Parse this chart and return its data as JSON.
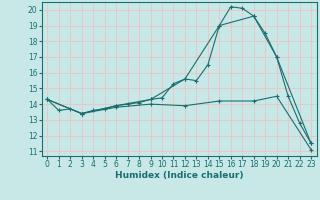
{
  "xlabel": "Humidex (Indice chaleur)",
  "background_color": "#c8e8e8",
  "grid_color": "#e8c8c8",
  "line_color": "#1a6e6e",
  "xlim": [
    -0.5,
    23.5
  ],
  "ylim": [
    10.7,
    20.5
  ],
  "yticks": [
    11,
    12,
    13,
    14,
    15,
    16,
    17,
    18,
    19,
    20
  ],
  "xticks": [
    0,
    1,
    2,
    3,
    4,
    5,
    6,
    7,
    8,
    9,
    10,
    11,
    12,
    13,
    14,
    15,
    16,
    17,
    18,
    19,
    20,
    21,
    22,
    23
  ],
  "curve1_x": [
    0,
    1,
    2,
    3,
    4,
    5,
    6,
    7,
    8,
    9,
    10,
    11,
    12,
    13,
    14,
    15,
    16,
    17,
    18,
    19,
    20,
    21,
    22,
    23
  ],
  "curve1_y": [
    14.3,
    13.6,
    13.7,
    13.4,
    13.6,
    13.7,
    13.9,
    14.0,
    14.1,
    14.3,
    14.4,
    15.3,
    15.6,
    15.5,
    16.5,
    19.0,
    20.2,
    20.1,
    19.6,
    18.5,
    17.0,
    14.5,
    12.8,
    11.5
  ],
  "curve2_x": [
    0,
    3,
    6,
    9,
    12,
    15,
    18,
    20,
    23
  ],
  "curve2_y": [
    14.3,
    13.4,
    13.9,
    14.3,
    15.6,
    19.0,
    19.6,
    17.0,
    11.5
  ],
  "curve3_x": [
    0,
    3,
    6,
    9,
    12,
    15,
    18,
    20,
    23
  ],
  "curve3_y": [
    14.3,
    13.4,
    13.8,
    14.0,
    13.9,
    14.2,
    14.2,
    14.5,
    11.1
  ],
  "tick_fontsize": 5.5,
  "xlabel_fontsize": 6.5
}
